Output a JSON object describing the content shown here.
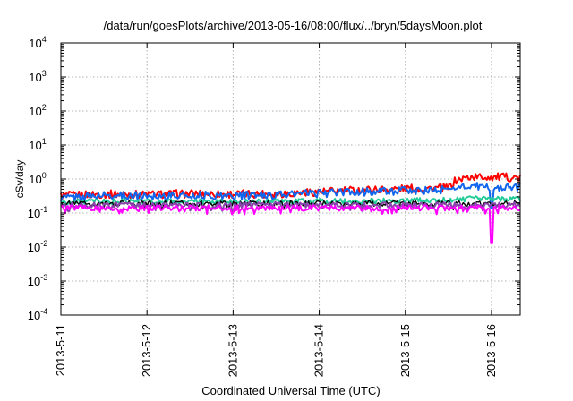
{
  "chart_data": {
    "type": "line",
    "title": "/data/run/goesPlots/archive/2013-05-16/08:00/flux/../bryn/5daysMoon.plot",
    "xlabel": "Coordinated Universal Time (UTC)",
    "ylabel": "cSv/day",
    "xlim": [
      "2013-05-11T00:00",
      "2013-05-16T08:00"
    ],
    "ylim": [
      0.0001,
      10000
    ],
    "yscale": "log",
    "grid": true,
    "legend": "none",
    "x_ticks": [
      "2013-5-11",
      "2013-5-12",
      "2013-5-13",
      "2013-5-14",
      "2013-5-15",
      "2013-5-16"
    ],
    "y_ticks": [
      {
        "value": 0.0001,
        "base": "10",
        "exp": "-4"
      },
      {
        "value": 0.001,
        "base": "10",
        "exp": "-3"
      },
      {
        "value": 0.01,
        "base": "10",
        "exp": "-2"
      },
      {
        "value": 0.1,
        "base": "10",
        "exp": "-1"
      },
      {
        "value": 1,
        "base": "10",
        "exp": "0"
      },
      {
        "value": 10,
        "base": "10",
        "exp": "1"
      },
      {
        "value": 100,
        "base": "10",
        "exp": "2"
      },
      {
        "value": 1000,
        "base": "10",
        "exp": "3"
      },
      {
        "value": 10000,
        "base": "10",
        "exp": "4"
      }
    ],
    "series": [
      {
        "color": "#ff0000",
        "points": [
          [
            "2013-05-11T00:00",
            0.32
          ],
          [
            "2013-05-11T12:00",
            0.36
          ],
          [
            "2013-05-12T00:00",
            0.35
          ],
          [
            "2013-05-12T12:00",
            0.37
          ],
          [
            "2013-05-13T00:00",
            0.36
          ],
          [
            "2013-05-13T12:00",
            0.37
          ],
          [
            "2013-05-14T00:00",
            0.42
          ],
          [
            "2013-05-14T12:00",
            0.48
          ],
          [
            "2013-05-15T00:00",
            0.52
          ],
          [
            "2013-05-15T12:00",
            0.55
          ],
          [
            "2013-05-15T14:00",
            0.9
          ],
          [
            "2013-05-15T18:00",
            1.15
          ],
          [
            "2013-05-16T00:00",
            1.15
          ],
          [
            "2013-05-16T08:00",
            1.1
          ]
        ]
      },
      {
        "color": "#1166ee",
        "points": [
          [
            "2013-05-11T00:00",
            0.28
          ],
          [
            "2013-05-11T12:00",
            0.33
          ],
          [
            "2013-05-12T00:00",
            0.32
          ],
          [
            "2013-05-12T12:00",
            0.33
          ],
          [
            "2013-05-13T00:00",
            0.32
          ],
          [
            "2013-05-13T12:00",
            0.34
          ],
          [
            "2013-05-14T00:00",
            0.38
          ],
          [
            "2013-05-14T12:00",
            0.42
          ],
          [
            "2013-05-15T00:00",
            0.45
          ],
          [
            "2013-05-15T12:00",
            0.47
          ],
          [
            "2013-05-15T14:00",
            0.58
          ],
          [
            "2013-05-15T18:00",
            0.62
          ],
          [
            "2013-05-16T00:00",
            0.55
          ],
          [
            "2013-05-16T08:00",
            0.6
          ]
        ]
      },
      {
        "color": "#22cc99",
        "points": [
          [
            "2013-05-11T00:00",
            0.21
          ],
          [
            "2013-05-12T00:00",
            0.22
          ],
          [
            "2013-05-13T00:00",
            0.21
          ],
          [
            "2013-05-14T00:00",
            0.22
          ],
          [
            "2013-05-15T00:00",
            0.23
          ],
          [
            "2013-05-15T12:00",
            0.24
          ],
          [
            "2013-05-15T18:00",
            0.26
          ],
          [
            "2013-05-16T08:00",
            0.26
          ]
        ]
      },
      {
        "color": "#000000",
        "points": [
          [
            "2013-05-11T00:00",
            0.19
          ],
          [
            "2013-05-12T00:00",
            0.19
          ],
          [
            "2013-05-13T00:00",
            0.19
          ],
          [
            "2013-05-14T00:00",
            0.19
          ],
          [
            "2013-05-15T00:00",
            0.19
          ],
          [
            "2013-05-16T08:00",
            0.19
          ]
        ]
      },
      {
        "color": "#8844aa",
        "points": [
          [
            "2013-05-11T00:00",
            0.17
          ],
          [
            "2013-05-12T00:00",
            0.17
          ],
          [
            "2013-05-13T00:00",
            0.17
          ],
          [
            "2013-05-14T00:00",
            0.17
          ],
          [
            "2013-05-15T00:00",
            0.17
          ],
          [
            "2013-05-16T08:00",
            0.17
          ]
        ]
      },
      {
        "color": "#ff00ff",
        "points": [
          [
            "2013-05-11T00:00",
            0.14
          ],
          [
            "2013-05-12T00:00",
            0.14
          ],
          [
            "2013-05-13T00:00",
            0.14
          ],
          [
            "2013-05-14T00:00",
            0.14
          ],
          [
            "2013-05-15T00:00",
            0.14
          ],
          [
            "2013-05-16T00:00",
            0.14
          ],
          [
            "2013-05-16T08:00",
            0.14
          ]
        ]
      }
    ],
    "annotations": [
      {
        "note_x": "2013-05-16T00:00",
        "min_value": 0.013,
        "color": "#ff00ff"
      }
    ]
  }
}
